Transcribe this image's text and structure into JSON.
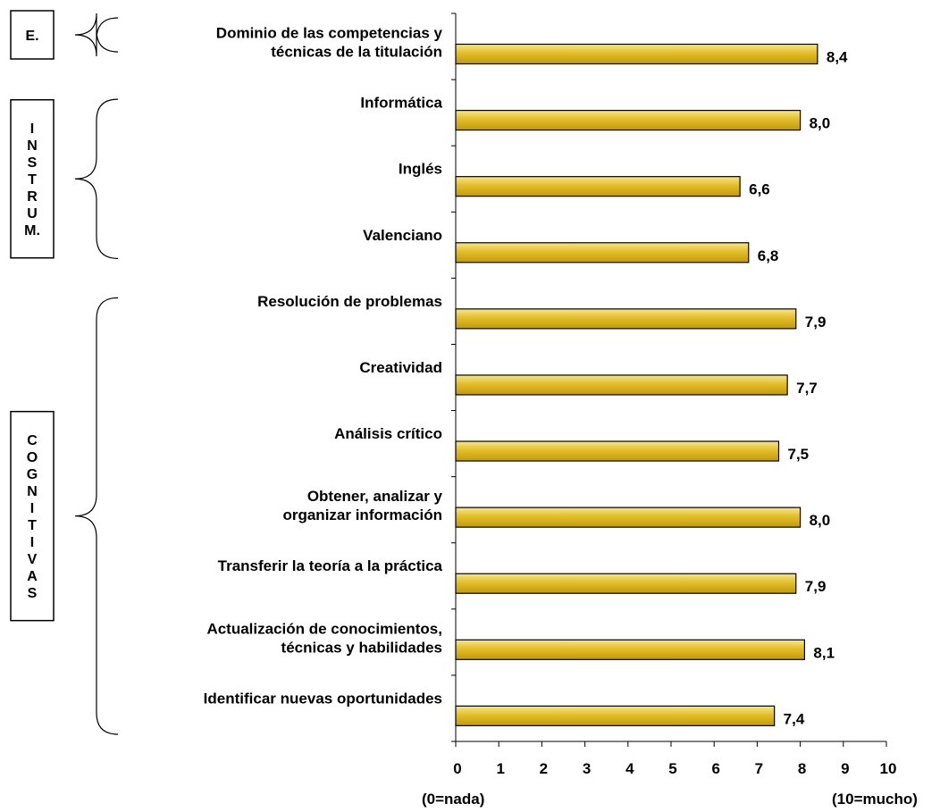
{
  "chart_data": {
    "type": "bar",
    "orientation": "horizontal",
    "categories": [
      "Dominio de las competencias y técnicas de la titulación",
      "Informática",
      "Inglés",
      "Valenciano",
      "Resolución de problemas",
      "Creatividad",
      "Análisis crítico",
      "Obtener, analizar y organizar información",
      "Transferir la teoría a la práctica",
      "Actualización de conocimientos, técnicas y habilidades",
      "Identificar nuevas oportunidades"
    ],
    "category_lines": [
      [
        "Dominio de las competencias y",
        "técnicas de la titulación"
      ],
      [
        "Informática"
      ],
      [
        "Inglés"
      ],
      [
        "Valenciano"
      ],
      [
        "Resolución de problemas"
      ],
      [
        "Creatividad"
      ],
      [
        "Análisis crítico"
      ],
      [
        "Obtener, analizar y",
        "organizar información"
      ],
      [
        "Transferir la teoría a la práctica"
      ],
      [
        "Actualización de conocimientos,",
        "técnicas y habilidades"
      ],
      [
        "Identificar nuevas oportunidades"
      ]
    ],
    "values": [
      8.4,
      8.0,
      6.6,
      6.8,
      7.9,
      7.7,
      7.5,
      8.0,
      7.9,
      8.1,
      7.4
    ],
    "value_labels": [
      "8,4",
      "8,0",
      "6,6",
      "6,8",
      "7,9",
      "7,7",
      "7,5",
      "8,0",
      "7,9",
      "8,1",
      "7,4"
    ],
    "xlim": [
      0,
      10
    ],
    "x_ticks": [
      "0",
      "1",
      "2",
      "3",
      "4",
      "5",
      "6",
      "7",
      "8",
      "9",
      "10"
    ],
    "x_end_labels": {
      "min": "(0=nada)",
      "max": "(10=mucho)"
    },
    "bar_color": "#D4A80C",
    "bar_highlight": "#F7E78A",
    "groups": [
      {
        "label": "E.",
        "letters": [
          "E."
        ],
        "first": 0,
        "last": 0
      },
      {
        "label": "INSTRUM.",
        "letters": [
          "I",
          "N",
          "S",
          "T",
          "R",
          "U",
          "M."
        ],
        "first": 1,
        "last": 3
      },
      {
        "label": "COGNITIVAS",
        "letters": [
          "C",
          "O",
          "G",
          "N",
          "I",
          "T",
          "I",
          "V",
          "A",
          "S"
        ],
        "first": 4,
        "last": 10
      }
    ],
    "grid": false,
    "legend": "none"
  }
}
